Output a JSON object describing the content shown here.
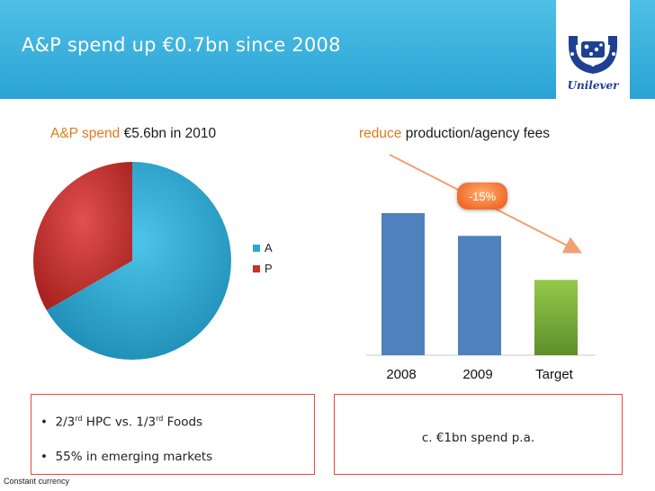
{
  "header": {
    "title": "A&P spend up €0.7bn since 2008"
  },
  "logo": {
    "text": "Unilever"
  },
  "left_panel": {
    "subtitle_prefix": "A&P spend",
    "subtitle_rest": "€5.6bn in 2010",
    "bullets": [
      {
        "pre": "2/3",
        "sup": "rd",
        "post": " HPC vs. 1/3",
        "sup2": "rd",
        "post2": " Foods"
      },
      {
        "text": "55% in emerging markets"
      }
    ]
  },
  "right_panel": {
    "subtitle_prefix": "reduce",
    "subtitle_rest": "production/agency fees",
    "callout": "-15%",
    "box_text": "c. €1bn spend p.a."
  },
  "footnote": "Constant currency",
  "colors": {
    "A": "#2aa8cf",
    "P": "#c9302c",
    "bar": "#4f81bd",
    "target_bar": "#80b53a",
    "arrow": "#f2a072"
  },
  "chart_data": [
    {
      "type": "pie",
      "slices": [
        {
          "label": "A",
          "value": 0.6667
        },
        {
          "label": "P",
          "value": 0.3333
        }
      ],
      "legend_position": "right"
    },
    {
      "type": "bar",
      "categories": [
        "2008",
        "2009",
        "Target"
      ],
      "values": [
        100,
        84,
        53
      ],
      "ylim": [
        0,
        100
      ],
      "grid": false,
      "annotation": "-15%"
    }
  ]
}
